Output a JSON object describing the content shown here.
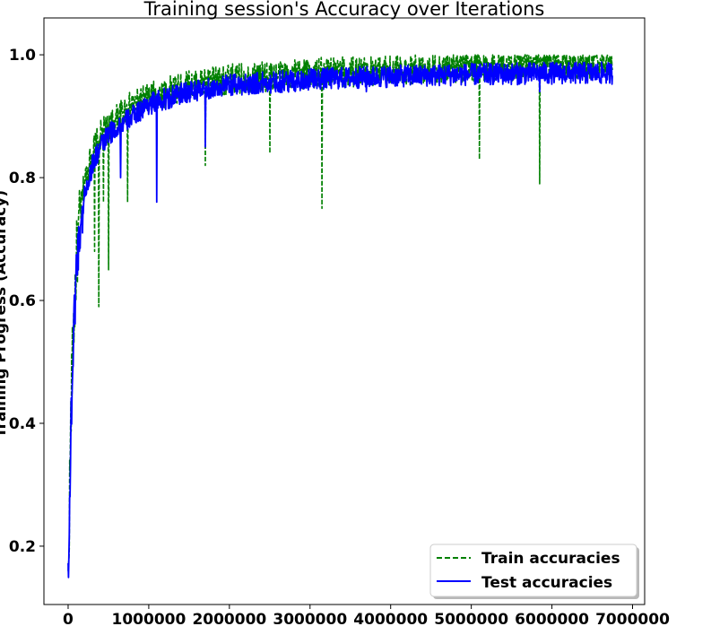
{
  "chart_data": {
    "type": "line",
    "title": "Training session's Accuracy over Iterations",
    "ylabel": "Training Progress (Accuracy)",
    "xlabel": "",
    "xlim": [
      -300000,
      7150000
    ],
    "ylim": [
      0.105,
      1.06
    ],
    "x_ticks": [
      0,
      1000000,
      2000000,
      3000000,
      4000000,
      5000000,
      6000000,
      7000000
    ],
    "x_tick_labels": [
      "0",
      "1000000",
      "2000000",
      "3000000",
      "4000000",
      "5000000",
      "6000000",
      "7000000"
    ],
    "y_ticks": [
      0.2,
      0.4,
      0.6,
      0.8,
      1.0
    ],
    "y_tick_labels": [
      "0.2",
      "0.4",
      "0.6",
      "0.8",
      "1.0"
    ],
    "grid": false,
    "legend_position": "lower-right",
    "series": [
      {
        "name": "Train accuracies",
        "color": "#008000",
        "style": "dashed",
        "points": [
          [
            0,
            0.13
          ],
          [
            20000,
            0.3
          ],
          [
            40000,
            0.45
          ],
          [
            70000,
            0.56
          ],
          [
            100000,
            0.66
          ],
          [
            150000,
            0.74
          ],
          [
            200000,
            0.79
          ],
          [
            300000,
            0.84
          ],
          [
            400000,
            0.87
          ],
          [
            500000,
            0.88
          ],
          [
            700000,
            0.91
          ],
          [
            1000000,
            0.93
          ],
          [
            1500000,
            0.95
          ],
          [
            2000000,
            0.96
          ],
          [
            3000000,
            0.97
          ],
          [
            4000000,
            0.975
          ],
          [
            5000000,
            0.98
          ],
          [
            6000000,
            0.985
          ],
          [
            6750000,
            0.988
          ]
        ],
        "noise": 0.025,
        "dips": [
          [
            330000,
            0.68
          ],
          [
            380000,
            0.59
          ],
          [
            440000,
            0.76
          ],
          [
            500000,
            0.65
          ],
          [
            740000,
            0.76
          ],
          [
            1700000,
            0.82
          ],
          [
            2500000,
            0.84
          ],
          [
            3150000,
            0.75
          ],
          [
            5100000,
            0.83
          ],
          [
            5850000,
            0.79
          ]
        ]
      },
      {
        "name": "Test accuracies",
        "color": "#0000ff",
        "style": "solid",
        "points": [
          [
            0,
            0.16
          ],
          [
            20000,
            0.27
          ],
          [
            40000,
            0.42
          ],
          [
            70000,
            0.55
          ],
          [
            100000,
            0.65
          ],
          [
            150000,
            0.72
          ],
          [
            200000,
            0.77
          ],
          [
            300000,
            0.82
          ],
          [
            400000,
            0.85
          ],
          [
            500000,
            0.87
          ],
          [
            700000,
            0.89
          ],
          [
            1000000,
            0.92
          ],
          [
            1500000,
            0.94
          ],
          [
            2000000,
            0.95
          ],
          [
            3000000,
            0.96
          ],
          [
            4000000,
            0.965
          ],
          [
            5000000,
            0.968
          ],
          [
            6000000,
            0.97
          ],
          [
            6750000,
            0.97
          ]
        ],
        "noise": 0.018,
        "dips": [
          [
            180000,
            0.71
          ],
          [
            650000,
            0.8
          ],
          [
            1100000,
            0.76
          ],
          [
            1700000,
            0.85
          ],
          [
            3700000,
            0.94
          ],
          [
            5850000,
            0.94
          ]
        ]
      }
    ]
  }
}
